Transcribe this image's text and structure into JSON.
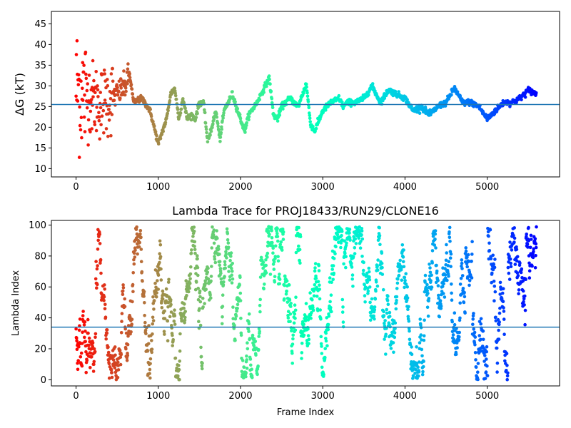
{
  "chart_data": [
    {
      "type": "scatter",
      "title": "",
      "xlabel": "",
      "ylabel": "ΔG (kT)",
      "xlim": [
        -300,
        5880
      ],
      "ylim": [
        8,
        48
      ],
      "xticks": [
        0,
        1000,
        2000,
        3000,
        4000,
        5000
      ],
      "yticks": [
        10,
        15,
        20,
        25,
        30,
        35,
        40,
        45
      ],
      "hline": 25.5,
      "hline_color": "#1f77b4",
      "colormap": "rainbow (reversed: red at frame 0 → violet at last frame)",
      "n_frames": 5600,
      "trace_shape": "early frames widely scattered 10–47, settling into a continuous wandering trace between ~15 and ~33",
      "keypoints": {
        "x": [
          0,
          100,
          200,
          300,
          400,
          500,
          600,
          650,
          700,
          800,
          900,
          1000,
          1050,
          1100,
          1150,
          1200,
          1250,
          1300,
          1350,
          1400,
          1450,
          1500,
          1550,
          1600,
          1650,
          1700,
          1750,
          1800,
          1900,
          2000,
          2050,
          2100,
          2200,
          2300,
          2350,
          2400,
          2450,
          2500,
          2600,
          2650,
          2700,
          2800,
          2850,
          2900,
          3000,
          3100,
          3200,
          3250,
          3300,
          3400,
          3500,
          3600,
          3650,
          3700,
          3800,
          3900,
          4000,
          4100,
          4200,
          4300,
          4400,
          4500,
          4600,
          4700,
          4800,
          4900,
          5000,
          5100,
          5200,
          5300,
          5400,
          5500,
          5600
        ],
        "y": [
          30,
          28,
          27,
          26,
          27,
          28,
          30,
          33,
          26,
          27,
          24,
          16,
          19,
          22,
          28,
          29.5,
          22,
          27,
          22,
          23,
          22,
          26,
          26,
          16.5,
          20,
          24,
          17,
          24,
          28,
          22,
          19,
          23,
          26,
          30,
          32,
          23,
          22,
          25,
          27,
          26,
          25,
          30.5,
          21,
          19,
          24,
          26,
          27,
          25,
          26,
          26,
          27,
          30,
          28,
          26,
          29,
          28,
          27,
          24,
          25,
          23,
          25,
          26,
          29.5,
          26,
          26,
          25,
          22,
          24,
          26,
          26,
          27,
          29,
          28
        ]
      }
    },
    {
      "type": "scatter",
      "title": "Lambda Trace for PROJ18433/RUN29/CLONE16",
      "xlabel": "Frame Index",
      "ylabel": "Lambda Index",
      "xlim": [
        -300,
        5880
      ],
      "ylim": [
        -4,
        103
      ],
      "xticks": [
        0,
        1000,
        2000,
        3000,
        4000,
        5000
      ],
      "yticks": [
        0,
        20,
        40,
        60,
        80,
        100
      ],
      "hline": 34,
      "hline_color": "#1f77b4",
      "colormap": "rainbow (reversed: red at frame 0 → violet at last frame)",
      "n_frames": 5600,
      "value_range": [
        0,
        99
      ],
      "trace_shape": "random-walk bands jumping across the full 0–99 lambda range"
    }
  ]
}
